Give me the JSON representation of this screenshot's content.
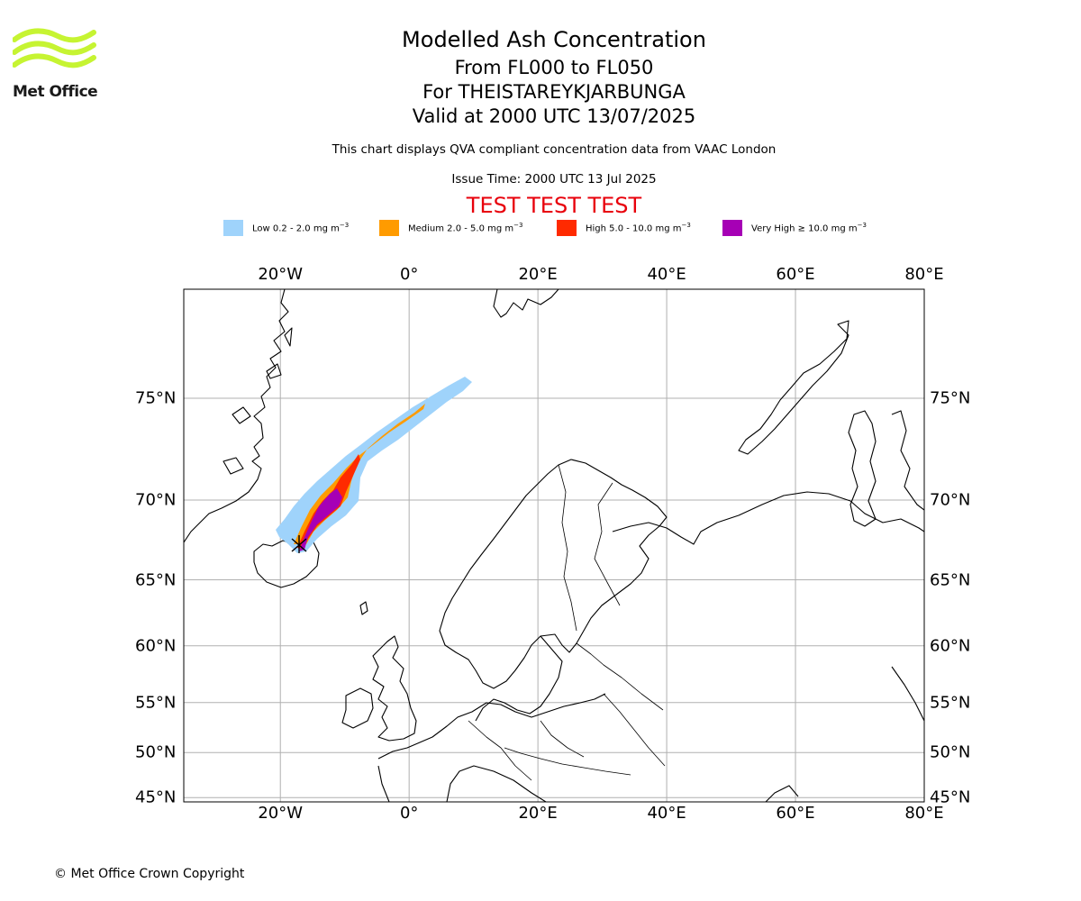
{
  "header": {
    "title": "Modelled Ash Concentration",
    "levels": "From FL000 to FL050",
    "volcano": "For THEISTAREYKJARBUNGA",
    "valid": "Valid at 2000 UTC 13/07/2025",
    "subtitle": "This chart displays QVA compliant concentration data from VAAC London",
    "issue_time": "Issue Time: 2000 UTC 13 Jul 2025",
    "banner": "TEST TEST TEST"
  },
  "logo": {
    "text": "Met Office",
    "color": "#c6f432",
    "icon": "met-office-waves-logo"
  },
  "legend": [
    {
      "label": "Low 0.2 - 2.0 mg m",
      "unit_exp": "−3",
      "color": "#9fd3fb"
    },
    {
      "label": "Medium 2.0 - 5.0 mg m",
      "unit_exp": "−3",
      "color": "#ff9b00"
    },
    {
      "label": "High 5.0 - 10.0 mg m",
      "unit_exp": "−3",
      "color": "#ff2a00"
    },
    {
      "label": "Very High  ≥  10.0 mg m",
      "unit_exp": "−3",
      "color": "#a600b5"
    }
  ],
  "map": {
    "projection": "mercator",
    "lon_range": [
      -35,
      80
    ],
    "lat_range": [
      44.5,
      79
    ],
    "lon_ticks": [
      {
        "value": -20,
        "label": "20°W"
      },
      {
        "value": 0,
        "label": "0°"
      },
      {
        "value": 20,
        "label": "20°E"
      },
      {
        "value": 40,
        "label": "40°E"
      },
      {
        "value": 60,
        "label": "60°E"
      },
      {
        "value": 80,
        "label": "80°E"
      }
    ],
    "lat_ticks": [
      {
        "value": 75,
        "label": "75°N"
      },
      {
        "value": 70,
        "label": "70°N"
      },
      {
        "value": 65,
        "label": "65°N"
      },
      {
        "value": 60,
        "label": "60°N"
      },
      {
        "value": 55,
        "label": "55°N"
      },
      {
        "value": 50,
        "label": "50°N"
      },
      {
        "value": 45,
        "label": "45°N"
      }
    ],
    "grid": true,
    "volcano_marker": {
      "lon": -16.8,
      "lat": 65.95
    }
  },
  "footer": {
    "copyright": "© Met Office Crown Copyright"
  }
}
